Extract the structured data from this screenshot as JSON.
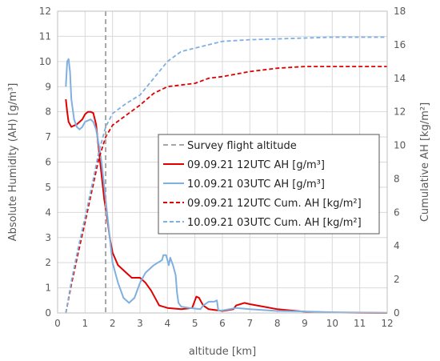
{
  "chart_data": {
    "type": "line",
    "xlabel": "altitude [km]",
    "ylabel": "Absolute Humidity (AH)  [g/m³]",
    "y2label": "Cumulative AH  [kg/m²]",
    "xlim": [
      0,
      12
    ],
    "ylim": [
      0,
      12
    ],
    "y2lim": [
      0,
      18
    ],
    "xticks": [
      "0",
      "1",
      "2",
      "3",
      "4",
      "5",
      "6",
      "7",
      "8",
      "9",
      "10",
      "11",
      "12"
    ],
    "yticks": [
      "0",
      "1",
      "2",
      "3",
      "4",
      "5",
      "6",
      "7",
      "8",
      "9",
      "10",
      "11",
      "12"
    ],
    "y2ticks": [
      "0",
      "2",
      "4",
      "6",
      "8",
      "10",
      "12",
      "14",
      "16",
      "18"
    ],
    "grid": true,
    "legend_position": "center-right",
    "survey_flight_altitude": 1.75,
    "legend": [
      "Survey flight altitude",
      "09.09.21 12UTC AH [g/m³]",
      "10.09.21 03UTC AH [g/m³]",
      "09.09.21 12UTC Cum. AH  [kg/m²]",
      "10.09.21 03UTC Cum. AH  [kg/m²]"
    ],
    "colors": {
      "survey": "#a6a6a6",
      "ah_0909": "#e00000",
      "ah_1009": "#7fb0e0",
      "cum_0909": "#e00000",
      "cum_1009": "#7fb0e0"
    },
    "series": [
      {
        "name": "09.09.21 12UTC AH [g/m³]",
        "axis": "left",
        "style": "solid",
        "points": [
          [
            0.3,
            8.5
          ],
          [
            0.35,
            8.0
          ],
          [
            0.4,
            7.6
          ],
          [
            0.5,
            7.4
          ],
          [
            0.6,
            7.45
          ],
          [
            0.7,
            7.5
          ],
          [
            0.8,
            7.6
          ],
          [
            0.9,
            7.7
          ],
          [
            1.0,
            7.9
          ],
          [
            1.1,
            8.0
          ],
          [
            1.2,
            8.0
          ],
          [
            1.3,
            7.95
          ],
          [
            1.4,
            7.5
          ],
          [
            1.5,
            6.5
          ],
          [
            1.6,
            5.5
          ],
          [
            1.7,
            4.5
          ],
          [
            1.8,
            3.8
          ],
          [
            1.9,
            3.0
          ],
          [
            2.0,
            2.4
          ],
          [
            2.2,
            1.9
          ],
          [
            2.5,
            1.6
          ],
          [
            2.7,
            1.4
          ],
          [
            3.0,
            1.4
          ],
          [
            3.2,
            1.2
          ],
          [
            3.4,
            0.9
          ],
          [
            3.6,
            0.5
          ],
          [
            3.7,
            0.3
          ],
          [
            4.0,
            0.2
          ],
          [
            4.5,
            0.15
          ],
          [
            4.9,
            0.2
          ],
          [
            5.0,
            0.5
          ],
          [
            5.05,
            0.65
          ],
          [
            5.15,
            0.6
          ],
          [
            5.3,
            0.3
          ],
          [
            5.5,
            0.15
          ],
          [
            6.0,
            0.08
          ],
          [
            6.4,
            0.15
          ],
          [
            6.5,
            0.3
          ],
          [
            6.8,
            0.4
          ],
          [
            7.0,
            0.35
          ],
          [
            7.5,
            0.25
          ],
          [
            8.0,
            0.15
          ],
          [
            8.5,
            0.1
          ],
          [
            9.0,
            0.05
          ],
          [
            10.0,
            0.02
          ],
          [
            11.0,
            0.01
          ],
          [
            12.0,
            0.0
          ]
        ]
      },
      {
        "name": "10.09.21 03UTC AH [g/m³]",
        "axis": "left",
        "style": "solid",
        "points": [
          [
            0.3,
            9.0
          ],
          [
            0.35,
            10.0
          ],
          [
            0.4,
            10.1
          ],
          [
            0.45,
            9.6
          ],
          [
            0.5,
            8.5
          ],
          [
            0.6,
            7.7
          ],
          [
            0.7,
            7.4
          ],
          [
            0.8,
            7.3
          ],
          [
            0.9,
            7.4
          ],
          [
            1.0,
            7.6
          ],
          [
            1.1,
            7.65
          ],
          [
            1.2,
            7.7
          ],
          [
            1.3,
            7.6
          ],
          [
            1.4,
            7.3
          ],
          [
            1.5,
            6.7
          ],
          [
            1.6,
            6.0
          ],
          [
            1.7,
            5.0
          ],
          [
            1.8,
            4.0
          ],
          [
            1.9,
            3.0
          ],
          [
            2.0,
            2.0
          ],
          [
            2.2,
            1.2
          ],
          [
            2.4,
            0.6
          ],
          [
            2.6,
            0.4
          ],
          [
            2.8,
            0.6
          ],
          [
            3.0,
            1.2
          ],
          [
            3.2,
            1.6
          ],
          [
            3.5,
            1.9
          ],
          [
            3.8,
            2.1
          ],
          [
            3.85,
            2.3
          ],
          [
            3.95,
            2.3
          ],
          [
            4.05,
            1.9
          ],
          [
            4.1,
            2.2
          ],
          [
            4.2,
            1.9
          ],
          [
            4.3,
            1.5
          ],
          [
            4.35,
            0.8
          ],
          [
            4.4,
            0.4
          ],
          [
            4.5,
            0.25
          ],
          [
            4.8,
            0.2
          ],
          [
            5.2,
            0.15
          ],
          [
            5.3,
            0.3
          ],
          [
            5.5,
            0.45
          ],
          [
            5.7,
            0.45
          ],
          [
            5.8,
            0.5
          ],
          [
            5.85,
            0.1
          ],
          [
            6.0,
            0.1
          ],
          [
            6.5,
            0.2
          ],
          [
            7.0,
            0.15
          ],
          [
            8.0,
            0.08
          ],
          [
            9.0,
            0.06
          ],
          [
            10.0,
            0.03
          ],
          [
            12.0,
            0.01
          ]
        ]
      },
      {
        "name": "09.09.21 12UTC Cum. AH  [kg/m²]",
        "axis": "right",
        "style": "dashed",
        "points": [
          [
            0.3,
            0.0
          ],
          [
            0.5,
            1.7
          ],
          [
            0.75,
            3.6
          ],
          [
            1.0,
            5.4
          ],
          [
            1.25,
            7.3
          ],
          [
            1.5,
            9.2
          ],
          [
            1.75,
            10.5
          ],
          [
            2.0,
            11.2
          ],
          [
            2.5,
            11.8
          ],
          [
            3.0,
            12.4
          ],
          [
            3.5,
            13.1
          ],
          [
            4.0,
            13.5
          ],
          [
            4.5,
            13.6
          ],
          [
            5.0,
            13.7
          ],
          [
            5.5,
            14.0
          ],
          [
            6.0,
            14.1
          ],
          [
            7.0,
            14.4
          ],
          [
            8.0,
            14.6
          ],
          [
            9.0,
            14.7
          ],
          [
            10.0,
            14.7
          ],
          [
            12.0,
            14.7
          ]
        ]
      },
      {
        "name": "10.09.21 03UTC Cum. AH  [kg/m²]",
        "axis": "right",
        "style": "dashed",
        "points": [
          [
            0.3,
            0.0
          ],
          [
            0.5,
            1.9
          ],
          [
            0.75,
            3.9
          ],
          [
            1.0,
            5.7
          ],
          [
            1.25,
            7.6
          ],
          [
            1.5,
            9.6
          ],
          [
            1.75,
            11.1
          ],
          [
            2.0,
            11.9
          ],
          [
            2.5,
            12.5
          ],
          [
            3.0,
            13.0
          ],
          [
            3.5,
            14.0
          ],
          [
            4.0,
            15.0
          ],
          [
            4.5,
            15.6
          ],
          [
            5.0,
            15.8
          ],
          [
            5.5,
            16.0
          ],
          [
            6.0,
            16.2
          ],
          [
            7.0,
            16.3
          ],
          [
            8.0,
            16.35
          ],
          [
            9.0,
            16.4
          ],
          [
            10.0,
            16.45
          ],
          [
            11.0,
            16.45
          ],
          [
            12.0,
            16.45
          ]
        ]
      }
    ]
  }
}
